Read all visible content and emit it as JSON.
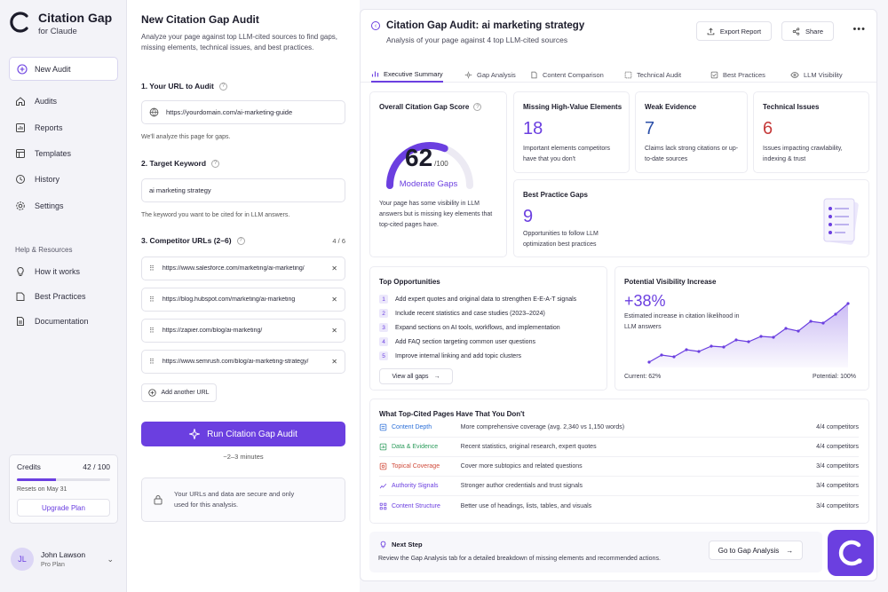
{
  "brand": {
    "title": "Citation Gap",
    "subtitle": "for Claude"
  },
  "sidebar": {
    "new_audit": "New Audit",
    "items": [
      {
        "label": "Audits",
        "icon": "home-icon"
      },
      {
        "label": "Reports",
        "icon": "reports-icon"
      },
      {
        "label": "Templates",
        "icon": "templates-icon"
      },
      {
        "label": "History",
        "icon": "history-icon"
      },
      {
        "label": "Settings",
        "icon": "gear-icon"
      }
    ],
    "section_label": "Help & Resources",
    "help_items": [
      {
        "label": "How it works",
        "icon": "lightbulb-icon"
      },
      {
        "label": "Best Practices",
        "icon": "book-icon"
      },
      {
        "label": "Documentation",
        "icon": "document-icon"
      }
    ],
    "credits": {
      "label": "Credits",
      "value": "42 / 100",
      "used_fraction": 0.42,
      "resets": "Resets on May 31",
      "upgrade": "Upgrade Plan"
    },
    "user": {
      "initials": "JL",
      "name": "John Lawson",
      "plan": "Pro Plan"
    }
  },
  "form": {
    "title": "New Citation Gap Audit",
    "description": "Analyze your page against top LLM-cited sources to find gaps, missing elements, technical issues, and best practices.",
    "step1": "1. Your URL to Audit",
    "url_value": "https://yourdomain.com/ai-marketing-guide",
    "url_hint": "We'll analyze this page for gaps.",
    "step2": "2. Target Keyword",
    "keyword_value": "ai marketing strategy",
    "keyword_hint": "The keyword you want to be cited for in LLM answers.",
    "step3": "3. Competitor URLs (2–6)",
    "url_count": "4 / 6",
    "competitors": [
      "https://www.salesforce.com/marketing/ai-marketing/",
      "https://blog.hubspot.com/marketing/ai-marketing",
      "https://zapier.com/blog/ai-marketing/",
      "https://www.semrush.com/blog/ai-marketing-strategy/"
    ],
    "add_url": "Add another URL",
    "run": "Run Citation Gap Audit",
    "run_time": "~2–3 minutes",
    "secure_text": "Your URLs and data are secure and only used for this analysis."
  },
  "report": {
    "title": "Citation Gap Audit: ai marketing strategy",
    "subtitle": "Analysis of your page against 4 top LLM-cited sources",
    "export": "Export Report",
    "share": "Share",
    "tabs": [
      "Executive Summary",
      "Gap Analysis",
      "Content Comparison",
      "Technical Audit",
      "Best Practices",
      "LLM Visibility"
    ],
    "score": {
      "title": "Overall Citation Gap Score",
      "value": "62",
      "max": "/100",
      "fraction": 0.62,
      "label": "Moderate Gaps",
      "desc": "Your page has some visibility in LLM answers but is missing key elements that top-cited pages have."
    },
    "missing": {
      "title": "Missing High-Value Elements",
      "value": "18",
      "desc": "Important elements competitors have that you don't",
      "color": "#6b3fe0"
    },
    "weak": {
      "title": "Weak Evidence",
      "value": "7",
      "desc": "Claims lack strong citations or up-to-date sources",
      "color": "#2b4fa8"
    },
    "technical": {
      "title": "Technical Issues",
      "value": "6",
      "desc": "Issues impacting crawlability, indexing & trust",
      "color": "#c53a3a"
    },
    "best": {
      "title": "Best Practice Gaps",
      "value": "9",
      "desc": "Opportunities to follow LLM optimization best practices",
      "color": "#6b3fe0"
    },
    "opportunities": {
      "title": "Top Opportunities",
      "items": [
        "Add expert quotes and original data to strengthen E-E-A-T signals",
        "Include recent statistics and case studies (2023–2024)",
        "Expand sections on AI tools, workflows, and implementation",
        "Add FAQ section targeting common user questions",
        "Improve internal linking and add topic clusters"
      ],
      "view_all": "View all gaps"
    },
    "visibility": {
      "title": "Potential Visibility Increase",
      "value": "+38%",
      "desc": "Estimated increase in citation likelihood in LLM answers",
      "current": "Current: 62%",
      "potential": "Potential: 100%"
    },
    "have": {
      "title": "What Top-Cited Pages Have That You Don't",
      "rows": [
        {
          "label": "Content Depth",
          "desc": "More comprehensive coverage (avg. 2,340 vs 1,150 words)",
          "count": "4/4 competitors",
          "icon": "content-depth-icon",
          "color": "#2b6fd8"
        },
        {
          "label": "Data & Evidence",
          "desc": "Recent statistics, original research, expert quotes",
          "count": "4/4 competitors",
          "icon": "data-evidence-icon",
          "color": "#2a9a5a"
        },
        {
          "label": "Topical Coverage",
          "desc": "Cover more subtopics and related questions",
          "count": "3/4 competitors",
          "icon": "topical-coverage-icon",
          "color": "#d04a3a"
        },
        {
          "label": "Authority Signals",
          "desc": "Stronger author credentials and trust signals",
          "count": "3/4 competitors",
          "icon": "authority-signals-icon",
          "color": "#6b3fe0"
        },
        {
          "label": "Content Structure",
          "desc": "Better use of headings, lists, tables, and visuals",
          "count": "3/4 competitors",
          "icon": "content-structure-icon",
          "color": "#6b3fe0"
        }
      ]
    },
    "next": {
      "title": "Next Step",
      "desc": "Review the Gap Analysis tab for a detailed breakdown of missing elements and recommended actions.",
      "button": "Go to Gap Analysis"
    }
  }
}
